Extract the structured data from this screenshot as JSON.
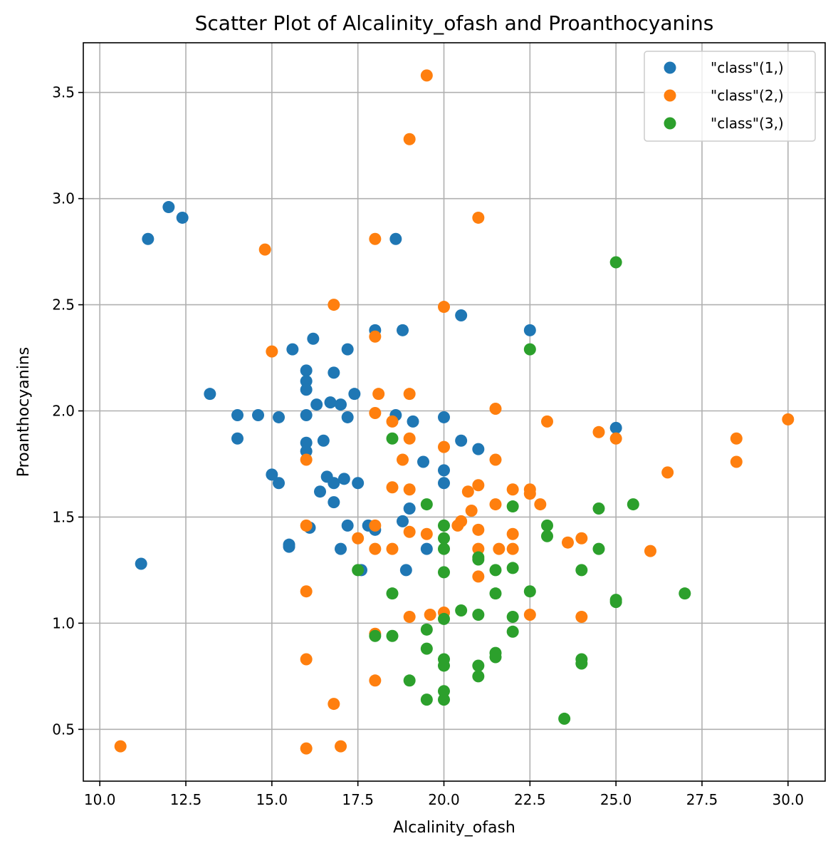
{
  "chart_data": {
    "type": "scatter",
    "title": "Scatter Plot of Alcalinity_ofash and Proanthocyanins",
    "xlabel": "Alcalinity_ofash",
    "ylabel": "Proanthocyanins",
    "xlim": [
      9.52,
      31.08
    ],
    "ylim": [
      0.256,
      3.734
    ],
    "xticks": [
      10.0,
      12.5,
      15.0,
      17.5,
      20.0,
      22.5,
      25.0,
      27.5,
      30.0
    ],
    "xtick_labels": [
      "10.0",
      "12.5",
      "15.0",
      "17.5",
      "20.0",
      "22.5",
      "25.0",
      "27.5",
      "30.0"
    ],
    "yticks": [
      0.5,
      1.0,
      1.5,
      2.0,
      2.5,
      3.0,
      3.5
    ],
    "ytick_labels": [
      "0.5",
      "1.0",
      "1.5",
      "2.0",
      "2.5",
      "3.0",
      "3.5"
    ],
    "grid": true,
    "legend_position": "top-right",
    "series": [
      {
        "name": "\"class\"(1,)",
        "color": "#1f77b4",
        "points": [
          [
            11.4,
            2.81
          ],
          [
            12.0,
            2.96
          ],
          [
            12.4,
            2.91
          ],
          [
            11.2,
            1.28
          ],
          [
            13.2,
            2.08
          ],
          [
            14.0,
            1.98
          ],
          [
            14.0,
            1.87
          ],
          [
            14.6,
            1.98
          ],
          [
            15.0,
            1.7
          ],
          [
            15.2,
            1.66
          ],
          [
            15.2,
            1.97
          ],
          [
            15.5,
            1.37
          ],
          [
            15.5,
            1.36
          ],
          [
            15.6,
            2.29
          ],
          [
            16.0,
            2.19
          ],
          [
            16.0,
            2.14
          ],
          [
            16.0,
            2.1
          ],
          [
            16.0,
            1.98
          ],
          [
            16.0,
            1.85
          ],
          [
            16.0,
            1.81
          ],
          [
            16.1,
            1.45
          ],
          [
            16.2,
            2.34
          ],
          [
            16.3,
            2.03
          ],
          [
            16.4,
            1.62
          ],
          [
            16.5,
            1.86
          ],
          [
            16.6,
            1.69
          ],
          [
            16.7,
            2.04
          ],
          [
            16.8,
            2.18
          ],
          [
            16.8,
            1.66
          ],
          [
            16.8,
            1.57
          ],
          [
            17.0,
            2.03
          ],
          [
            17.0,
            1.35
          ],
          [
            17.1,
            1.68
          ],
          [
            17.2,
            2.29
          ],
          [
            17.2,
            1.97
          ],
          [
            17.2,
            1.46
          ],
          [
            17.4,
            2.08
          ],
          [
            17.5,
            1.66
          ],
          [
            17.6,
            1.25
          ],
          [
            17.8,
            1.46
          ],
          [
            18.0,
            2.38
          ],
          [
            18.0,
            1.44
          ],
          [
            18.6,
            2.81
          ],
          [
            18.6,
            1.98
          ],
          [
            18.8,
            2.38
          ],
          [
            18.8,
            1.48
          ],
          [
            18.9,
            1.25
          ],
          [
            19.0,
            1.54
          ],
          [
            19.1,
            1.95
          ],
          [
            19.4,
            1.76
          ],
          [
            19.5,
            1.35
          ],
          [
            20.0,
            1.97
          ],
          [
            20.0,
            1.72
          ],
          [
            20.0,
            1.66
          ],
          [
            20.5,
            2.45
          ],
          [
            20.5,
            1.86
          ],
          [
            21.0,
            1.82
          ],
          [
            22.5,
            2.38
          ],
          [
            25.0,
            1.92
          ]
        ]
      },
      {
        "name": "\"class\"(2,)",
        "color": "#ff7f0e",
        "points": [
          [
            10.6,
            0.42
          ],
          [
            14.8,
            2.76
          ],
          [
            15.0,
            2.28
          ],
          [
            16.0,
            1.77
          ],
          [
            16.0,
            1.46
          ],
          [
            16.0,
            1.15
          ],
          [
            16.0,
            0.83
          ],
          [
            16.0,
            0.41
          ],
          [
            16.8,
            2.5
          ],
          [
            16.8,
            0.62
          ],
          [
            17.0,
            0.42
          ],
          [
            17.5,
            1.4
          ],
          [
            18.0,
            2.81
          ],
          [
            18.0,
            2.35
          ],
          [
            18.0,
            1.99
          ],
          [
            18.0,
            1.46
          ],
          [
            18.0,
            1.35
          ],
          [
            18.0,
            0.95
          ],
          [
            18.0,
            0.73
          ],
          [
            18.1,
            2.08
          ],
          [
            18.5,
            1.95
          ],
          [
            18.5,
            1.64
          ],
          [
            18.5,
            1.35
          ],
          [
            18.8,
            1.77
          ],
          [
            19.0,
            3.28
          ],
          [
            19.0,
            2.08
          ],
          [
            19.0,
            1.87
          ],
          [
            19.0,
            1.63
          ],
          [
            19.0,
            1.43
          ],
          [
            19.0,
            1.03
          ],
          [
            19.5,
            3.58
          ],
          [
            19.5,
            1.42
          ],
          [
            19.6,
            1.04
          ],
          [
            20.0,
            2.49
          ],
          [
            20.0,
            1.83
          ],
          [
            20.0,
            1.05
          ],
          [
            20.4,
            1.46
          ],
          [
            20.5,
            1.48
          ],
          [
            20.7,
            1.62
          ],
          [
            20.8,
            1.53
          ],
          [
            21.0,
            2.91
          ],
          [
            21.0,
            1.65
          ],
          [
            21.0,
            1.44
          ],
          [
            21.0,
            1.35
          ],
          [
            21.0,
            1.22
          ],
          [
            21.5,
            2.01
          ],
          [
            21.5,
            1.77
          ],
          [
            21.5,
            1.56
          ],
          [
            21.6,
            1.35
          ],
          [
            22.0,
            1.63
          ],
          [
            22.0,
            1.42
          ],
          [
            22.0,
            1.35
          ],
          [
            22.5,
            1.63
          ],
          [
            22.5,
            1.61
          ],
          [
            22.5,
            1.04
          ],
          [
            22.8,
            1.56
          ],
          [
            23.0,
            1.95
          ],
          [
            23.6,
            1.38
          ],
          [
            24.0,
            1.4
          ],
          [
            24.0,
            1.03
          ],
          [
            24.5,
            1.9
          ],
          [
            25.0,
            1.87
          ],
          [
            26.0,
            1.34
          ],
          [
            26.5,
            1.71
          ],
          [
            28.5,
            1.87
          ],
          [
            28.5,
            1.76
          ],
          [
            30.0,
            1.96
          ]
        ]
      },
      {
        "name": "\"class\"(3,)",
        "color": "#2ca02c",
        "points": [
          [
            17.5,
            1.25
          ],
          [
            18.0,
            0.94
          ],
          [
            18.5,
            1.87
          ],
          [
            18.5,
            1.14
          ],
          [
            18.5,
            0.94
          ],
          [
            19.0,
            0.73
          ],
          [
            19.5,
            1.56
          ],
          [
            19.5,
            0.97
          ],
          [
            19.5,
            0.88
          ],
          [
            19.5,
            0.64
          ],
          [
            20.0,
            1.46
          ],
          [
            20.0,
            1.4
          ],
          [
            20.0,
            1.35
          ],
          [
            20.0,
            1.24
          ],
          [
            20.0,
            1.02
          ],
          [
            20.0,
            0.83
          ],
          [
            20.0,
            0.8
          ],
          [
            20.0,
            0.68
          ],
          [
            20.0,
            0.64
          ],
          [
            20.5,
            1.06
          ],
          [
            21.0,
            1.31
          ],
          [
            21.0,
            1.3
          ],
          [
            21.0,
            1.04
          ],
          [
            21.0,
            0.8
          ],
          [
            21.0,
            0.75
          ],
          [
            21.5,
            1.25
          ],
          [
            21.5,
            1.14
          ],
          [
            21.5,
            0.86
          ],
          [
            21.5,
            0.84
          ],
          [
            22.0,
            1.55
          ],
          [
            22.0,
            1.26
          ],
          [
            22.0,
            1.03
          ],
          [
            22.0,
            0.96
          ],
          [
            22.5,
            2.29
          ],
          [
            22.5,
            1.15
          ],
          [
            23.0,
            1.46
          ],
          [
            23.0,
            1.41
          ],
          [
            23.5,
            0.55
          ],
          [
            24.0,
            1.25
          ],
          [
            24.0,
            0.83
          ],
          [
            24.0,
            0.81
          ],
          [
            24.5,
            1.54
          ],
          [
            24.5,
            1.35
          ],
          [
            25.0,
            2.7
          ],
          [
            25.0,
            1.11
          ],
          [
            25.0,
            1.1
          ],
          [
            25.5,
            1.56
          ],
          [
            27.0,
            1.14
          ]
        ]
      }
    ]
  }
}
